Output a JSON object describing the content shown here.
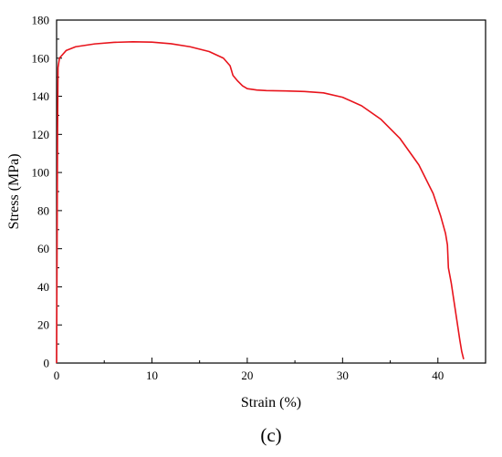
{
  "chart_data": {
    "type": "line",
    "title": "",
    "caption": "(c)",
    "xlabel": "Strain (%)",
    "ylabel": "Stress (MPa)",
    "xlim": [
      0,
      45
    ],
    "ylim": [
      0,
      180
    ],
    "x_ticks": [
      0,
      10,
      20,
      30,
      40
    ],
    "y_ticks": [
      0,
      20,
      40,
      60,
      80,
      100,
      120,
      140,
      160,
      180
    ],
    "grid": false,
    "line_color": "#e8141c",
    "series": [
      {
        "points": [
          [
            0,
            0
          ],
          [
            0.05,
            60
          ],
          [
            0.1,
            120
          ],
          [
            0.15,
            155
          ],
          [
            0.3,
            160
          ],
          [
            1,
            164
          ],
          [
            2,
            166
          ],
          [
            4,
            167.5
          ],
          [
            6,
            168.3
          ],
          [
            8,
            168.6
          ],
          [
            10,
            168.4
          ],
          [
            12,
            167.6
          ],
          [
            14,
            166
          ],
          [
            16,
            163.5
          ],
          [
            17.5,
            160
          ],
          [
            18.2,
            156
          ],
          [
            18.5,
            151
          ],
          [
            19,
            148
          ],
          [
            19.5,
            145.5
          ],
          [
            20,
            144
          ],
          [
            21,
            143.3
          ],
          [
            22,
            143
          ],
          [
            24,
            142.8
          ],
          [
            26,
            142.5
          ],
          [
            28,
            141.8
          ],
          [
            30,
            139.5
          ],
          [
            32,
            135
          ],
          [
            34,
            128
          ],
          [
            36,
            118
          ],
          [
            38,
            104
          ],
          [
            39.5,
            89
          ],
          [
            40.3,
            77
          ],
          [
            40.8,
            68
          ],
          [
            41,
            62
          ],
          [
            41.1,
            50
          ],
          [
            41.4,
            42
          ],
          [
            41.7,
            32
          ],
          [
            42.0,
            22
          ],
          [
            42.3,
            12
          ],
          [
            42.5,
            6
          ],
          [
            42.7,
            2
          ]
        ]
      }
    ]
  }
}
